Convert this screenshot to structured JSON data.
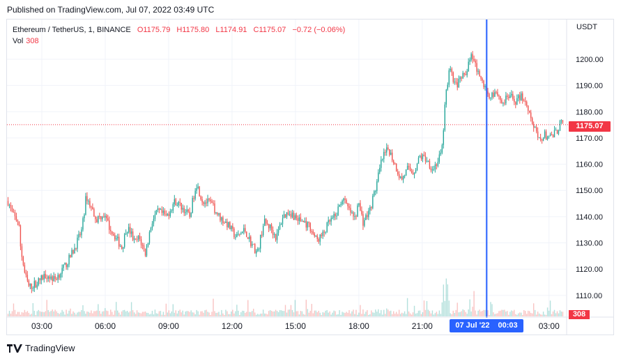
{
  "header": {
    "published": "Published on TradingView.com, Jul 07, 2022 03:49 UTC"
  },
  "legend": {
    "symbol": "Ethereum / TetherUS, 1, BINANCE",
    "open": "O1175.79",
    "high": "H1175.80",
    "low": "L1174.91",
    "close": "C1175.07",
    "change": "−0.72 (−0.06%)",
    "vol_label": "Vol",
    "vol_value": "308"
  },
  "axis": {
    "currency": "USDT"
  },
  "badges": {
    "last_price": "1175.07",
    "last_volume": "308",
    "crosshair_date": "07 Jul '22",
    "crosshair_time": "00:03"
  },
  "footer": {
    "brand": "TradingView"
  },
  "colors": {
    "up": "#26a69a",
    "down": "#ef5350",
    "accent": "#2962ff",
    "last_price": "#f23645",
    "grid": "#f0f3fa"
  },
  "chart_data": {
    "type": "candlestick",
    "interval": "1 minute",
    "symbol": "ETHUSDT",
    "y_ticks": [
      1110,
      1120,
      1130,
      1140,
      1150,
      1160,
      1170,
      1180,
      1190,
      1200
    ],
    "ylim": [
      1102,
      1213
    ],
    "x_ticks": [
      "03:00",
      "06:00",
      "09:00",
      "12:00",
      "15:00",
      "18:00",
      "21:00",
      "00:00",
      "03:00"
    ],
    "x_tick_hours": [
      3,
      6,
      9,
      12,
      15,
      18,
      21,
      24,
      27
    ],
    "xlim_hours": [
      1.35,
      27.8
    ],
    "crosshair_hour": 24.05,
    "last_price": 1175.07,
    "close_path": [
      [
        1.4,
        1146
      ],
      [
        1.6,
        1141
      ],
      [
        1.9,
        1138
      ],
      [
        2.0,
        1128
      ],
      [
        2.2,
        1118
      ],
      [
        2.4,
        1113
      ],
      [
        2.8,
        1115
      ],
      [
        3.2,
        1118
      ],
      [
        3.6,
        1116
      ],
      [
        4.0,
        1120
      ],
      [
        4.3,
        1124
      ],
      [
        4.6,
        1129
      ],
      [
        4.9,
        1135
      ],
      [
        5.1,
        1148
      ],
      [
        5.3,
        1144
      ],
      [
        5.6,
        1139
      ],
      [
        5.9,
        1141
      ],
      [
        6.2,
        1136
      ],
      [
        6.5,
        1132
      ],
      [
        6.8,
        1128
      ],
      [
        7.0,
        1136
      ],
      [
        7.2,
        1134
      ],
      [
        7.4,
        1130
      ],
      [
        7.6,
        1132
      ],
      [
        7.9,
        1126
      ],
      [
        8.2,
        1138
      ],
      [
        8.5,
        1142
      ],
      [
        8.9,
        1140
      ],
      [
        9.3,
        1146
      ],
      [
        9.7,
        1143
      ],
      [
        10.0,
        1140
      ],
      [
        10.3,
        1153
      ],
      [
        10.6,
        1146
      ],
      [
        11.0,
        1145
      ],
      [
        11.4,
        1140
      ],
      [
        11.8,
        1137
      ],
      [
        12.2,
        1132
      ],
      [
        12.6,
        1135
      ],
      [
        12.9,
        1130
      ],
      [
        13.2,
        1126
      ],
      [
        13.5,
        1138
      ],
      [
        13.8,
        1136
      ],
      [
        14.1,
        1132
      ],
      [
        14.4,
        1140
      ],
      [
        14.7,
        1142
      ],
      [
        15.1,
        1139
      ],
      [
        15.4,
        1138
      ],
      [
        15.7,
        1136
      ],
      [
        16.0,
        1131
      ],
      [
        16.3,
        1133
      ],
      [
        16.6,
        1138
      ],
      [
        16.9,
        1140
      ],
      [
        17.2,
        1147
      ],
      [
        17.5,
        1143
      ],
      [
        17.8,
        1139
      ],
      [
        18.0,
        1145
      ],
      [
        18.2,
        1138
      ],
      [
        18.5,
        1142
      ],
      [
        18.8,
        1151
      ],
      [
        19.1,
        1162
      ],
      [
        19.4,
        1166
      ],
      [
        19.7,
        1160
      ],
      [
        20.0,
        1154
      ],
      [
        20.3,
        1158
      ],
      [
        20.6,
        1157
      ],
      [
        20.9,
        1163
      ],
      [
        21.2,
        1162
      ],
      [
        21.5,
        1158
      ],
      [
        21.8,
        1162
      ],
      [
        21.95,
        1166
      ],
      [
        22.1,
        1186
      ],
      [
        22.3,
        1196
      ],
      [
        22.6,
        1190
      ],
      [
        22.9,
        1193
      ],
      [
        23.1,
        1196
      ],
      [
        23.3,
        1202
      ],
      [
        23.6,
        1196
      ],
      [
        23.9,
        1190
      ],
      [
        24.2,
        1186
      ],
      [
        24.5,
        1188
      ],
      [
        24.8,
        1183
      ],
      [
        25.1,
        1186
      ],
      [
        25.4,
        1184
      ],
      [
        25.7,
        1186
      ],
      [
        26.0,
        1182
      ],
      [
        26.2,
        1176
      ],
      [
        26.5,
        1169
      ],
      [
        26.8,
        1171
      ],
      [
        27.1,
        1170
      ],
      [
        27.4,
        1173
      ],
      [
        27.55,
        1176
      ],
      [
        27.65,
        1175.07
      ]
    ]
  }
}
